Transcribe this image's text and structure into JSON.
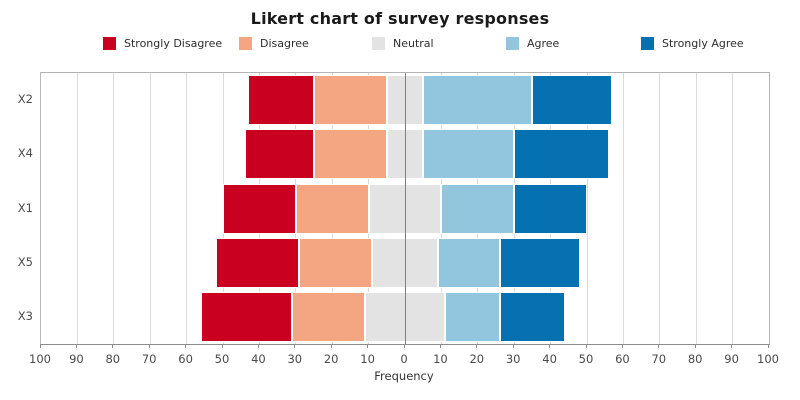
{
  "title": "Likert chart of survey responses",
  "chart_data": {
    "type": "bar",
    "variant": "diverging-stacked-likert",
    "orientation": "horizontal",
    "title": "Likert chart of survey responses",
    "xlabel": "Frequency",
    "categories": [
      "X2",
      "X4",
      "X1",
      "X5",
      "X3"
    ],
    "series": [
      {
        "name": "Strongly Disagree",
        "color": "#ca0020",
        "values": [
          18,
          19,
          20,
          23,
          25
        ]
      },
      {
        "name": "Disagree",
        "color": "#f4a582",
        "values": [
          20,
          20,
          20,
          20,
          20
        ]
      },
      {
        "name": "Neutral",
        "color": "#e3e3e3",
        "values": [
          10,
          10,
          20,
          18,
          22
        ]
      },
      {
        "name": "Agree",
        "color": "#92c5de",
        "values": [
          30,
          25,
          20,
          17,
          15
        ]
      },
      {
        "name": "Strongly Agree",
        "color": "#0571b0",
        "values": [
          22,
          26,
          20,
          22,
          18
        ]
      }
    ],
    "neutral_centered_on_zero": true,
    "row_totals": [
      100,
      100,
      100,
      100,
      100
    ],
    "xlim": [
      -100,
      100
    ],
    "x_tick_values": [
      -100,
      -90,
      -80,
      -70,
      -60,
      -50,
      -40,
      -30,
      -20,
      -10,
      0,
      10,
      20,
      30,
      40,
      50,
      60,
      70,
      80,
      90,
      100
    ],
    "x_tick_labels": [
      "100",
      "90",
      "80",
      "70",
      "60",
      "50",
      "40",
      "30",
      "20",
      "10",
      "0",
      "10",
      "20",
      "30",
      "40",
      "50",
      "60",
      "70",
      "80",
      "90",
      "100"
    ],
    "grid": true,
    "zero_line": true,
    "legend_position": "top"
  },
  "colors": {
    "background": "#ffffff",
    "gridline": "#dadada",
    "zero_line": "#7f7f7f",
    "axis_line": "#8c8c8c",
    "tick_text": "#4a4a4a",
    "title_text": "#1a1a1a"
  }
}
